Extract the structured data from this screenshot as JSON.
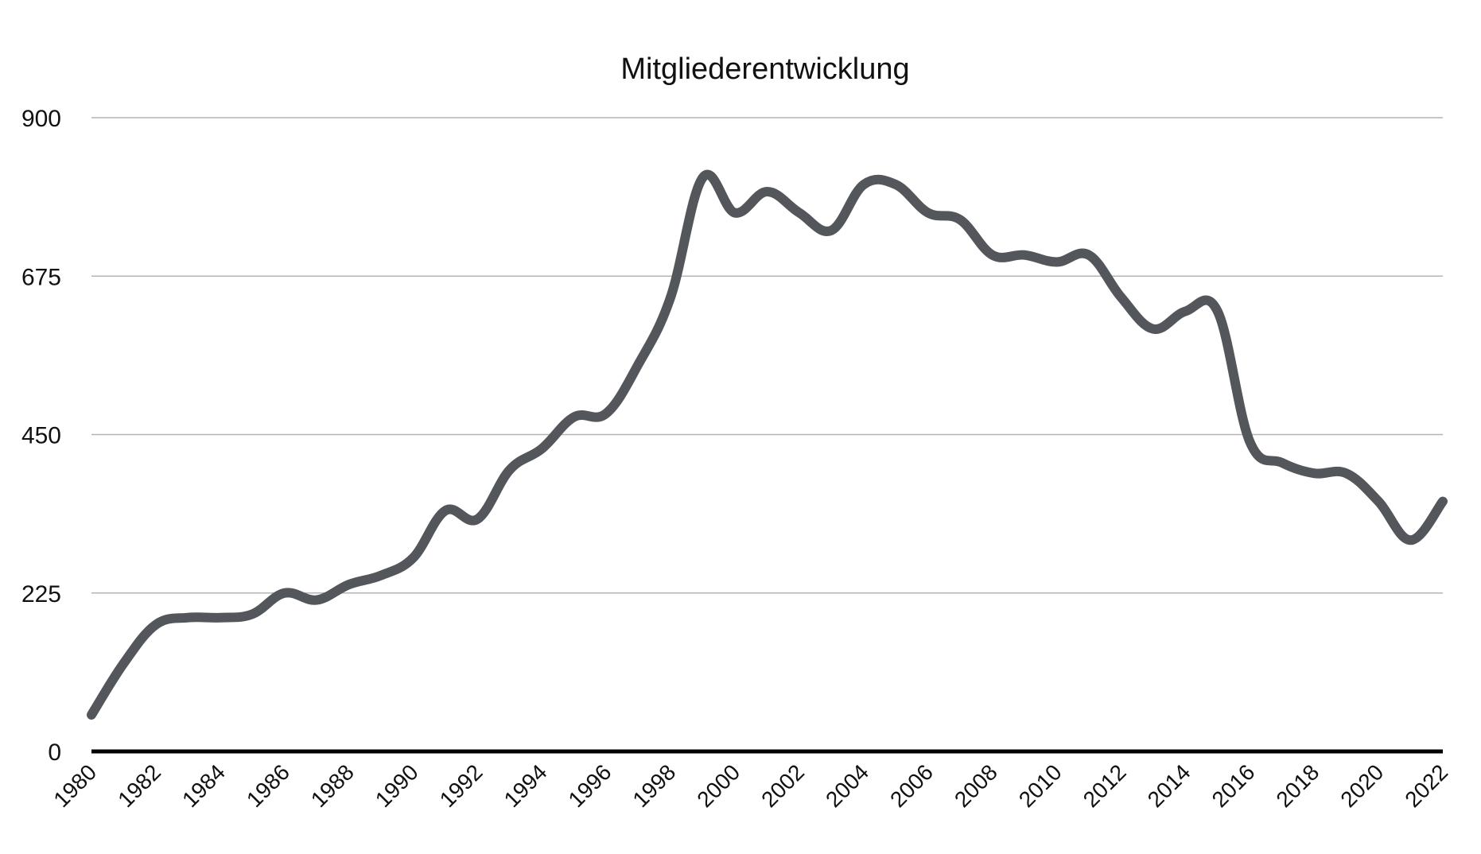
{
  "chart_data": {
    "type": "line",
    "title": "Mitgliederentwicklung",
    "xlabel": "",
    "ylabel": "",
    "ylim": [
      0,
      900
    ],
    "yticks": [
      0,
      225,
      450,
      675,
      900
    ],
    "xlim": [
      1980,
      2022
    ],
    "xticks": [
      "1980",
      "1982",
      "1984",
      "1986",
      "1988",
      "1990",
      "1992",
      "1994",
      "1996",
      "1998",
      "2000",
      "2002",
      "2004",
      "2006",
      "2008",
      "2010",
      "2012",
      "2014",
      "2016",
      "2018",
      "2020",
      "2022"
    ],
    "grid": true,
    "legend": "none",
    "colors": {
      "line": "#53575b",
      "grid": "#b4b4b4",
      "axis": "#000000"
    },
    "series": [
      {
        "x": [
          1980,
          1981,
          1982,
          1983,
          1984,
          1985,
          1986,
          1987,
          1988,
          1989,
          1990,
          1991,
          1992,
          1993,
          1994,
          1995,
          1996,
          1997,
          1998,
          1999,
          2000,
          2001,
          2002,
          2003,
          2004,
          2005,
          2006,
          2007,
          2008,
          2009,
          2010,
          2011,
          2012,
          2013,
          2014,
          2015,
          2016,
          2017,
          2018,
          2019,
          2020,
          2021,
          2022
        ],
        "values": [
          52,
          125,
          180,
          190,
          190,
          195,
          225,
          215,
          237,
          250,
          275,
          342,
          330,
          400,
          430,
          475,
          480,
          550,
          645,
          815,
          765,
          795,
          765,
          740,
          805,
          805,
          765,
          755,
          705,
          705,
          695,
          705,
          645,
          600,
          625,
          625,
          440,
          410,
          395,
          395,
          355,
          300,
          355
        ]
      }
    ]
  }
}
